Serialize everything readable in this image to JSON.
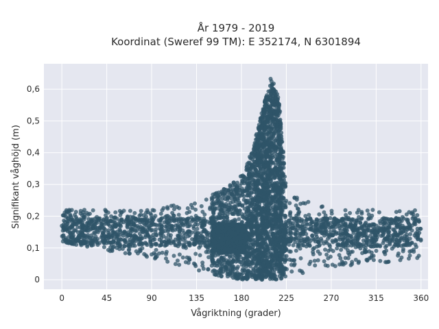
{
  "chart_data": {
    "type": "scatter",
    "title": "År 1979 - 2019",
    "subtitle": "Koordinat (Sweref 99 TM): E 352174, N 6301894",
    "xlabel": "Vågriktning (grader)",
    "ylabel": "Signifikant våghöjd (m)",
    "xlim": [
      -18,
      367
    ],
    "ylim": [
      -0.03,
      0.68
    ],
    "x_ticks": [
      0,
      45,
      90,
      135,
      180,
      225,
      270,
      315,
      360
    ],
    "y_ticks": [
      0,
      0.1,
      0.2,
      0.3,
      0.4,
      0.5,
      0.6
    ],
    "x_tick_labels": [
      "0",
      "45",
      "90",
      "135",
      "180",
      "225",
      "270",
      "315",
      "360"
    ],
    "y_tick_labels": [
      "0",
      "0,1",
      "0,2",
      "0,3",
      "0,4",
      "0,5",
      "0,6"
    ],
    "grid": true,
    "marker_color": "#2f5468",
    "plot_background": "#e5e7f0",
    "envelope": [
      {
        "x": 0,
        "y_min": 0.12,
        "y_max": 0.22
      },
      {
        "x": 45,
        "y_min": 0.09,
        "y_max": 0.22
      },
      {
        "x": 90,
        "y_min": 0.07,
        "y_max": 0.22
      },
      {
        "x": 135,
        "y_min": 0.03,
        "y_max": 0.25
      },
      {
        "x": 160,
        "y_min": 0.01,
        "y_max": 0.28
      },
      {
        "x": 180,
        "y_min": 0.0,
        "y_max": 0.33
      },
      {
        "x": 190,
        "y_min": 0.0,
        "y_max": 0.4
      },
      {
        "x": 200,
        "y_min": 0.0,
        "y_max": 0.52
      },
      {
        "x": 210,
        "y_min": 0.0,
        "y_max": 0.65
      },
      {
        "x": 218,
        "y_min": 0.0,
        "y_max": 0.56
      },
      {
        "x": 225,
        "y_min": 0.01,
        "y_max": 0.28
      },
      {
        "x": 270,
        "y_min": 0.04,
        "y_max": 0.22
      },
      {
        "x": 315,
        "y_min": 0.05,
        "y_max": 0.22
      },
      {
        "x": 360,
        "y_min": 0.07,
        "y_max": 0.22
      }
    ]
  }
}
